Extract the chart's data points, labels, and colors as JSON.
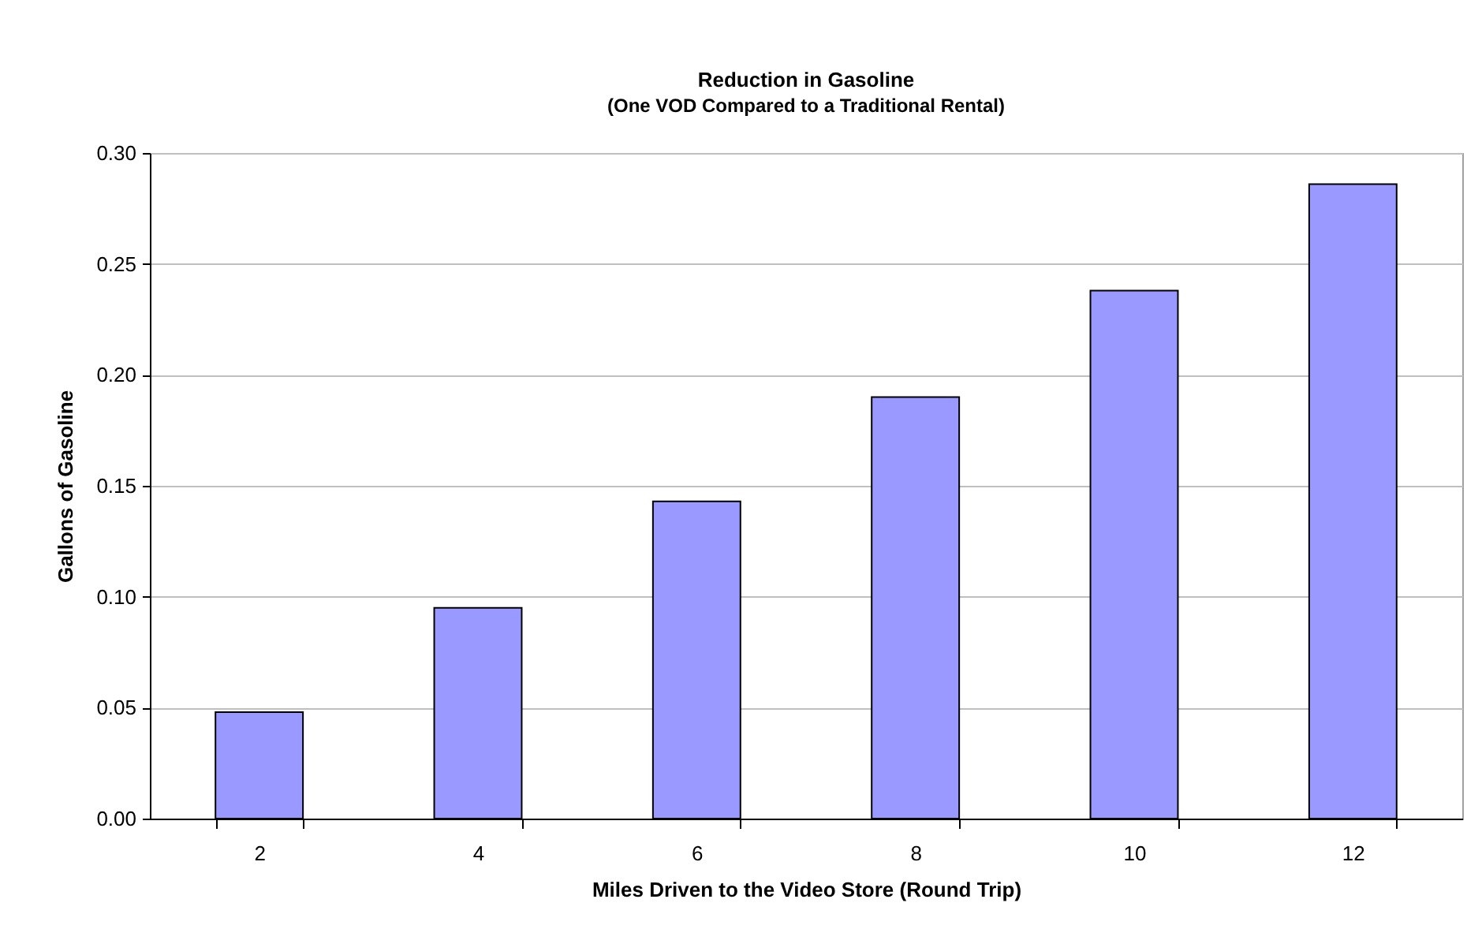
{
  "chart_data": {
    "type": "bar",
    "title": "Reduction in Gasoline",
    "subtitle": "(One VOD Compared to a Traditional Rental)",
    "xlabel": "Miles Driven to the Video Store (Round Trip)",
    "ylabel": "Gallons of Gasoline",
    "categories": [
      "2",
      "4",
      "6",
      "8",
      "10",
      "12"
    ],
    "values": [
      0.048,
      0.095,
      0.143,
      0.19,
      0.238,
      0.286
    ],
    "color": "#9999ff",
    "ylim": [
      0,
      0.3
    ],
    "yticks": [
      {
        "value": 0,
        "label": "0.00"
      },
      {
        "value": 0.05,
        "label": "0.05"
      },
      {
        "value": 0.1,
        "label": "0.10"
      },
      {
        "value": 0.15,
        "label": "0.15"
      },
      {
        "value": 0.2,
        "label": "0.20"
      },
      {
        "value": 0.25,
        "label": "0.25"
      },
      {
        "value": 0.3,
        "label": "0.30"
      }
    ],
    "grid": "y"
  }
}
